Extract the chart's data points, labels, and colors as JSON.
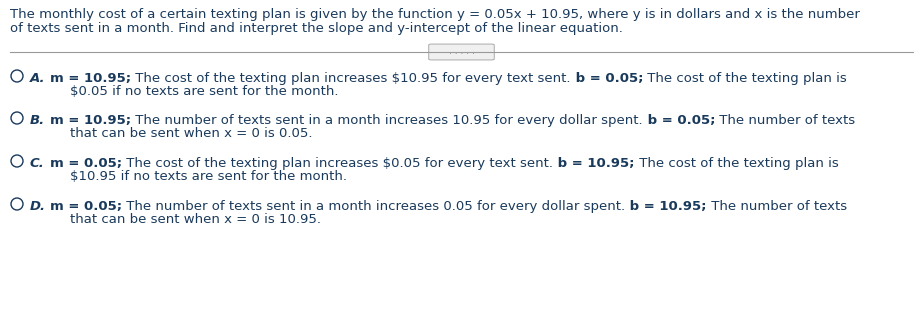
{
  "background_color": "#ffffff",
  "question_line1": "The monthly cost of a certain texting plan is given by the function y = 0.05x + 10.95, where y is in dollars and x is the number",
  "question_line2": "of texts sent in a month. Find and interpret the slope and y-intercept of the linear equation.",
  "text_color": "#1a3a5c",
  "figsize": [
    9.23,
    3.13
  ],
  "dpi": 100,
  "font_size": 9.5,
  "options": [
    {
      "letter": "A.",
      "line1_segments": [
        {
          "text": "m = 10.95;",
          "bold": true
        },
        {
          "text": " The cost of the texting plan increases $10.95 for every text sent.",
          "bold": false
        },
        {
          "text": " b = 0.05;",
          "bold": true
        },
        {
          "text": " The cost of the texting plan is",
          "bold": false
        }
      ],
      "line2": "$0.05 if no texts are sent for the month."
    },
    {
      "letter": "B.",
      "line1_segments": [
        {
          "text": "m = 10.95;",
          "bold": true
        },
        {
          "text": " The number of texts sent in a month increases 10.95 for every dollar spent.",
          "bold": false
        },
        {
          "text": " b = 0.05;",
          "bold": true
        },
        {
          "text": " The number of texts",
          "bold": false
        }
      ],
      "line2": "that can be sent when x = 0 is 0.05."
    },
    {
      "letter": "C.",
      "line1_segments": [
        {
          "text": "m = 0.05;",
          "bold": true
        },
        {
          "text": " The cost of the texting plan increases $0.05 for every text sent.",
          "bold": false
        },
        {
          "text": " b = 10.95;",
          "bold": true
        },
        {
          "text": " The cost of the texting plan is",
          "bold": false
        }
      ],
      "line2": "$10.95 if no texts are sent for the month."
    },
    {
      "letter": "D.",
      "line1_segments": [
        {
          "text": "m = 0.05;",
          "bold": true
        },
        {
          "text": " The number of texts sent in a month increases 0.05 for every dollar spent.",
          "bold": false
        },
        {
          "text": " b = 10.95;",
          "bold": true
        },
        {
          "text": " The number of texts",
          "bold": false
        }
      ],
      "line2": "that can be sent when x = 0 is 10.95."
    }
  ]
}
